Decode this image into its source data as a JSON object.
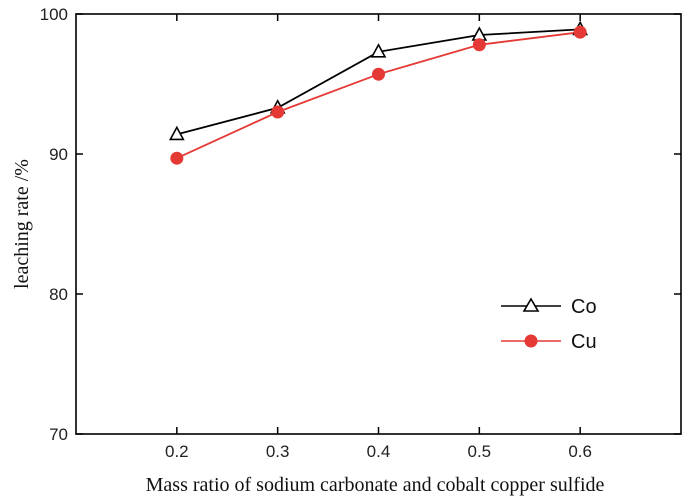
{
  "chart_data": {
    "type": "line",
    "x": [
      0.2,
      0.3,
      0.4,
      0.5,
      0.6
    ],
    "xlabel": "Mass ratio of sodium carbonate and cobalt copper sulfide",
    "ylabel": "leaching rate /%",
    "xlim": [
      0.1,
      0.7
    ],
    "ylim": [
      70,
      100
    ],
    "xticks": [
      "0.2",
      "0.3",
      "0.4",
      "0.5",
      "0.6"
    ],
    "yticks": [
      "70",
      "80",
      "90",
      "100"
    ],
    "grid": false,
    "legend_position": "lower-right",
    "series": [
      {
        "name": "Co",
        "values": [
          91.4,
          93.3,
          97.3,
          98.5,
          98.9
        ],
        "color": "#000000",
        "marker": "open-triangle"
      },
      {
        "name": "Cu",
        "values": [
          89.7,
          93.0,
          95.7,
          97.8,
          98.7
        ],
        "color": "#e53935",
        "marker": "filled-circle"
      }
    ]
  }
}
